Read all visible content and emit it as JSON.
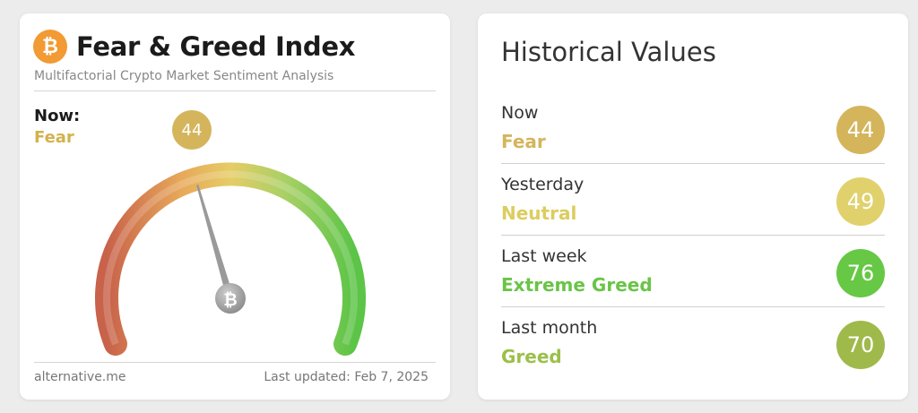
{
  "fear_greed": {
    "title": "Fear & Greed Index",
    "subtitle": "Multifactorial Crypto Market Sentiment Analysis",
    "logo_symbol": "₿",
    "now_label": "Now:",
    "now_classification": "Fear",
    "now_value": "44",
    "value_fraction": 0.44,
    "source": "alternative.me",
    "last_updated": "Last updated: Feb 7, 2025"
  },
  "historical": {
    "title": "Historical Values",
    "rows": [
      {
        "period": "Now",
        "classification": "Fear",
        "value": "44",
        "text_color": "#d4b55c",
        "circle_color": "#d4b55c"
      },
      {
        "period": "Yesterday",
        "classification": "Neutral",
        "value": "49",
        "text_color": "#dccd5f",
        "circle_color": "#e0d16c"
      },
      {
        "period": "Last week",
        "classification": "Extreme Greed",
        "value": "76",
        "text_color": "#6ac447",
        "circle_color": "#66c845"
      },
      {
        "period": "Last month",
        "classification": "Greed",
        "value": "70",
        "text_color": "#9bc04a",
        "circle_color": "#9fb94b"
      }
    ]
  },
  "colors": {
    "fear": "#d4b55c",
    "neutral": "#e0d16c",
    "greed": "#9fb94b",
    "extreme_greed": "#66c845",
    "extreme_fear": "#c8624a",
    "needle": "#9a9a9a"
  }
}
